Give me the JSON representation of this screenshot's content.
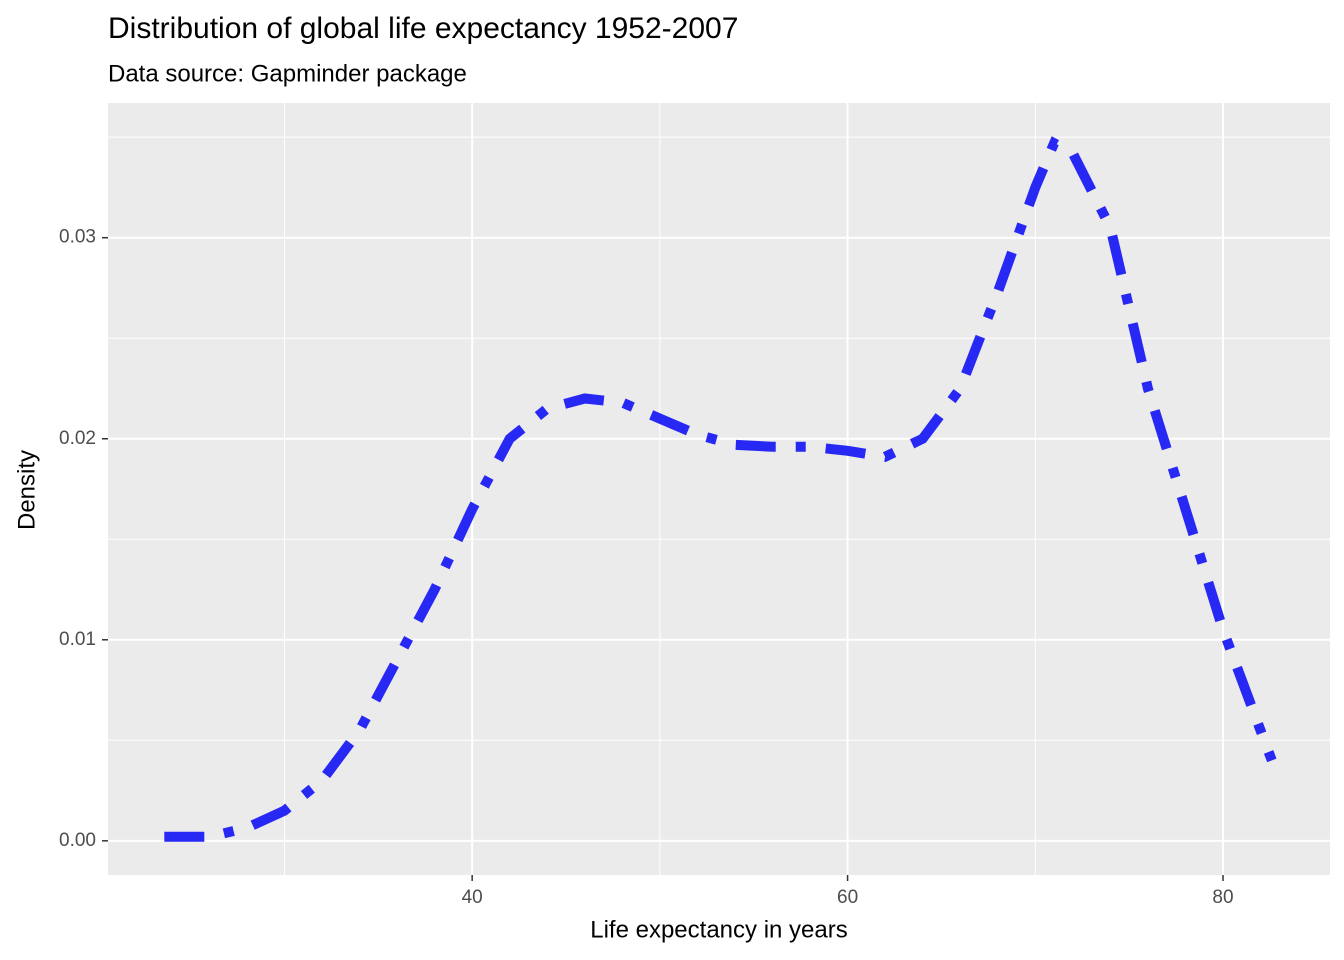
{
  "chart_data": {
    "type": "line",
    "title": "Distribution of global life expectancy 1952-2007",
    "subtitle": "Data source: Gapminder package",
    "x_label": "Life expectancy in years",
    "y_label": "Density",
    "x": [
      23.6,
      26,
      28,
      30,
      32,
      34,
      36,
      38,
      40,
      42,
      44,
      46,
      48,
      50,
      52,
      54,
      56,
      58,
      60,
      62,
      64,
      66,
      68,
      70,
      71,
      72,
      74,
      76,
      78,
      80,
      82,
      82.6
    ],
    "series": [
      {
        "color": "#2828f5",
        "linetype": "dotdash",
        "values": [
          0.0002,
          0.0002,
          0.00065,
          0.0015,
          0.003,
          0.0055,
          0.009,
          0.0125,
          0.0165,
          0.02,
          0.0215,
          0.022,
          0.0218,
          0.021,
          0.0202,
          0.0197,
          0.0196,
          0.0196,
          0.0194,
          0.0191,
          0.02,
          0.0225,
          0.0273,
          0.0325,
          0.0347,
          0.0342,
          0.0305,
          0.0225,
          0.0165,
          0.0105,
          0.0055,
          0.004
        ]
      }
    ],
    "xlim": [
      20.6,
      85.7
    ],
    "ylim": [
      -0.0017,
      0.0367
    ],
    "xticks": [
      40,
      60,
      80
    ],
    "yticks": [
      {
        "value": 0,
        "label": "0.00"
      },
      {
        "value": 0.01,
        "label": "0.01"
      },
      {
        "value": 0.02,
        "label": "0.02"
      },
      {
        "value": 0.03,
        "label": "0.03"
      }
    ],
    "grid": true
  }
}
